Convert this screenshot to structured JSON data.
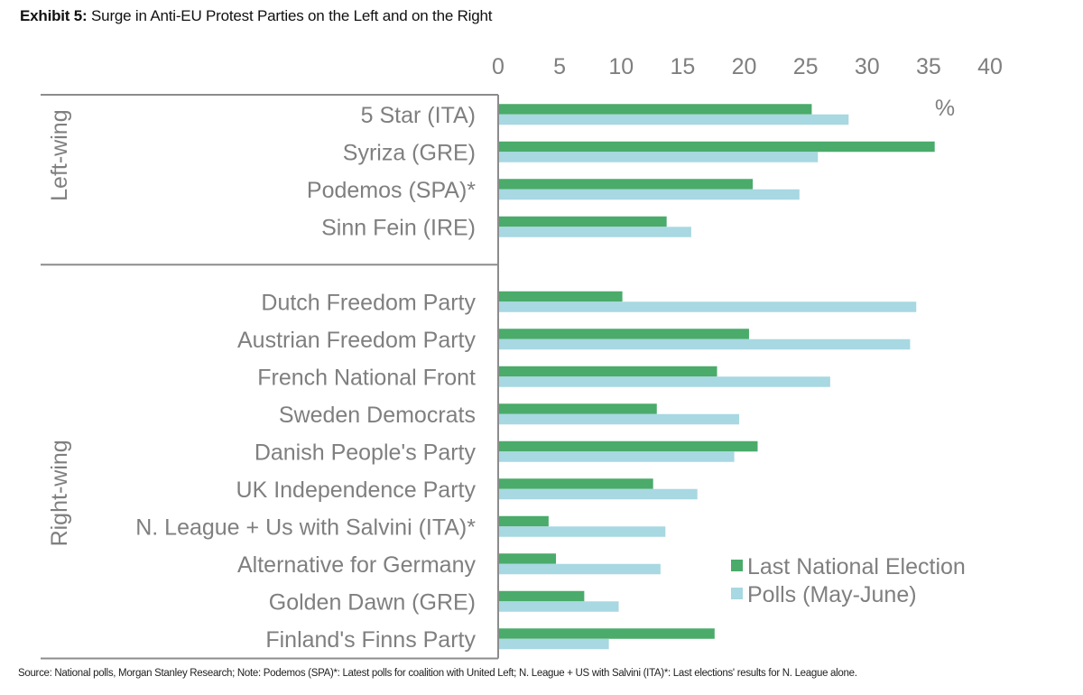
{
  "title": {
    "exhibit": "Exhibit 5:",
    "text": "Surge in Anti-EU Protest Parties on the Left and on the Right"
  },
  "source": "Source: National polls, Morgan Stanley Research; Note: Podemos (SPA)*: Latest polls for coalition with United Left; N. League + US with Salvini (ITA)*: Last elections' results for N. League alone.",
  "colors": {
    "election": "#4aab6a",
    "polls": "#a8d8e2",
    "text": "#7f7f7f",
    "axis": "#8c8c8c"
  },
  "chart_data": {
    "type": "bar",
    "orientation": "horizontal",
    "title": "Surge in Anti-EU Protest Parties on the Left and on the Right",
    "xlabel": "%",
    "xlim": [
      0,
      40
    ],
    "xticks": [
      0,
      5,
      10,
      15,
      20,
      25,
      30,
      35,
      40
    ],
    "x_axis_position": "top",
    "grid": false,
    "legend_position": "bottom-right",
    "groups": [
      {
        "name": "Left-wing",
        "categories": [
          "5 Star (ITA)",
          "Syriza (GRE)",
          "Podemos (SPA)*",
          "Sinn Fein (IRE)"
        ]
      },
      {
        "name": "Right-wing",
        "categories": [
          "Dutch Freedom Party",
          "Austrian Freedom Party",
          "French National Front",
          "Sweden Democrats",
          "Danish People's Party",
          "UK Independence Party",
          "N. League + Us with Salvini (ITA)*",
          "Alternative for Germany",
          "Golden Dawn (GRE)",
          "Finland's Finns Party"
        ]
      }
    ],
    "categories": [
      "5 Star (ITA)",
      "Syriza (GRE)",
      "Podemos (SPA)*",
      "Sinn Fein (IRE)",
      "Dutch Freedom Party",
      "Austrian Freedom Party",
      "French National Front",
      "Sweden Democrats",
      "Danish People's Party",
      "UK Independence Party",
      "N. League + Us with Salvini (ITA)*",
      "Alternative for Germany",
      "Golden Dawn (GRE)",
      "Finland's Finns Party"
    ],
    "series": [
      {
        "name": "Last National Election",
        "values": [
          25.5,
          35.5,
          20.7,
          13.7,
          10.1,
          20.4,
          17.8,
          12.9,
          21.1,
          12.6,
          4.1,
          4.7,
          7.0,
          17.6
        ]
      },
      {
        "name": "Polls (May-June)",
        "values": [
          28.5,
          26.0,
          24.5,
          15.7,
          34.0,
          33.5,
          27.0,
          19.6,
          19.2,
          16.2,
          13.6,
          13.2,
          9.8,
          9.0
        ]
      }
    ]
  }
}
